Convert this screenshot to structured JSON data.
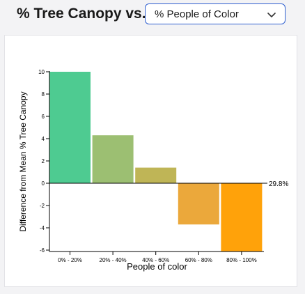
{
  "header": {
    "title": "% Tree Canopy vs.",
    "select": {
      "selected": "% People of Color"
    }
  },
  "icons": {
    "select_chevron": "chevron-down-icon"
  },
  "colors": {
    "select_border": "#2f5fd0",
    "bars": [
      "#4ecb91",
      "#9cbf72",
      "#bfb556",
      "#eba83b",
      "#ffa20a"
    ]
  },
  "chart_data": {
    "type": "bar",
    "categories": [
      "0% - 20%",
      "20% - 40%",
      "40% - 60%",
      "60% - 80%",
      "80% - 100%"
    ],
    "values": [
      10,
      4.3,
      1.4,
      -3.7,
      -6.1
    ],
    "xlabel": "People of color",
    "ylabel": "Difference from Mean % Tree Canopy",
    "ylim": [
      -6,
      10
    ],
    "yticks": [
      10,
      8,
      6,
      4,
      2,
      0,
      -2,
      -4,
      -6
    ],
    "baseline_label": "29.8%",
    "grid": false
  }
}
